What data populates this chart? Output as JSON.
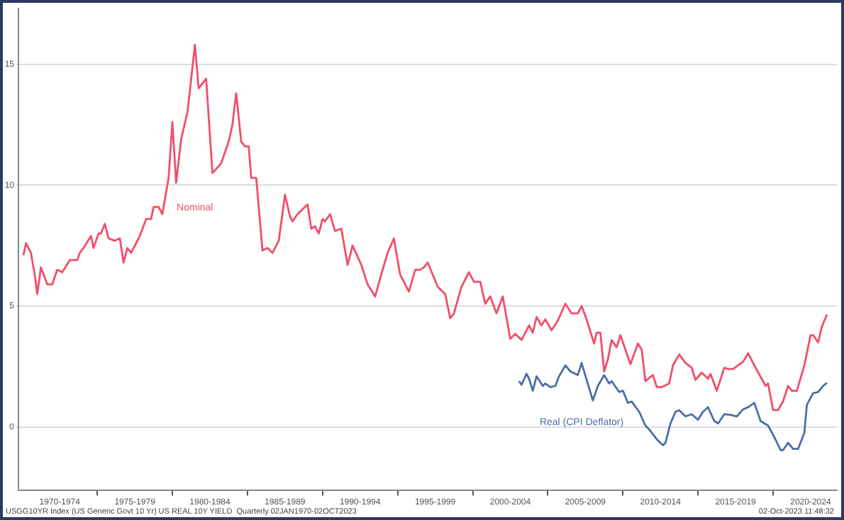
{
  "chart_data": {
    "type": "line",
    "xlim": [
      "1969-10",
      "2024-04"
    ],
    "ylim": [
      -2.6,
      17.3
    ],
    "yticks": [
      0,
      5,
      10,
      15
    ],
    "xticks": [
      {
        "value": "1972-07",
        "label": "1970-1974"
      },
      {
        "value": "1975-01",
        "label": null
      },
      {
        "value": "1977-07",
        "label": "1975-1979"
      },
      {
        "value": "1980-01",
        "label": null
      },
      {
        "value": "1982-07",
        "label": "1980-1984"
      },
      {
        "value": "1985-01",
        "label": null
      },
      {
        "value": "1987-07",
        "label": "1985-1989"
      },
      {
        "value": "1990-01",
        "label": null
      },
      {
        "value": "1992-07",
        "label": "1990-1994"
      },
      {
        "value": "1995-01",
        "label": null
      },
      {
        "value": "1997-07",
        "label": "1995-1999"
      },
      {
        "value": "2000-01",
        "label": null
      },
      {
        "value": "2002-07",
        "label": "2000-2004"
      },
      {
        "value": "2005-01",
        "label": null
      },
      {
        "value": "2007-07",
        "label": "2005-2009"
      },
      {
        "value": "2010-01",
        "label": null
      },
      {
        "value": "2012-07",
        "label": "2010-2014"
      },
      {
        "value": "2015-01",
        "label": null
      },
      {
        "value": "2017-07",
        "label": "2015-2019"
      },
      {
        "value": "2020-01",
        "label": null
      },
      {
        "value": "2022-07",
        "label": "2020-2024"
      }
    ],
    "grid": "y",
    "legend": false,
    "marker": "none",
    "line_style": "solid",
    "annotations": [
      "USGG10YR Index (US Generic Govt 10 Yr) US REAL 10Y YIELD  Quarterly 02JAN1970-02OCT2023",
      "02-Oct-2023 11:48:32"
    ],
    "series": [
      {
        "name": "Nominal",
        "color": "#ef4f6a",
        "x": [
          "1970-02",
          "1970-04",
          "1970-08",
          "1970-11",
          "1971-01",
          "1971-04",
          "1971-09",
          "1972-01",
          "1972-05",
          "1972-09",
          "1973-03",
          "1973-09",
          "1973-11",
          "1974-02",
          "1974-08",
          "1974-10",
          "1975-02",
          "1975-04",
          "1975-07",
          "1975-10",
          "1976-03",
          "1976-07",
          "1976-10",
          "1977-01",
          "1977-04",
          "1977-11",
          "1978-04",
          "1978-08",
          "1978-10",
          "1979-02",
          "1979-05",
          "1979-10",
          "1980-01",
          "1980-04",
          "1980-08",
          "1981-01",
          "1981-03",
          "1981-07",
          "1981-10",
          "1982-04",
          "1982-09",
          "1983-04",
          "1983-10",
          "1984-01",
          "1984-04",
          "1984-08",
          "1984-11",
          "1985-02",
          "1985-04",
          "1985-08",
          "1986-01",
          "1986-05",
          "1986-09",
          "1987-02",
          "1987-07",
          "1987-11",
          "1988-01",
          "1988-05",
          "1989-01",
          "1989-04",
          "1989-07",
          "1989-10",
          "1990-01",
          "1990-03",
          "1990-07",
          "1990-11",
          "1991-04",
          "1991-09",
          "1992-01",
          "1992-08",
          "1993-01",
          "1993-07",
          "1994-01",
          "1994-05",
          "1994-10",
          "1995-03",
          "1995-10",
          "1996-03",
          "1996-07",
          "1996-10",
          "1997-01",
          "1997-09",
          "1998-03",
          "1998-07",
          "1998-10",
          "1999-04",
          "1999-10",
          "2000-02",
          "2000-07",
          "2000-11",
          "2001-03",
          "2001-08",
          "2002-01",
          "2002-07",
          "2002-11",
          "2003-04",
          "2003-10",
          "2004-01",
          "2004-04",
          "2004-08",
          "2004-11",
          "2005-04",
          "2005-09",
          "2006-03",
          "2006-08",
          "2007-01",
          "2007-04",
          "2007-08",
          "2008-02",
          "2008-04",
          "2008-07",
          "2008-10",
          "2009-01",
          "2009-04",
          "2009-08",
          "2009-11",
          "2010-07",
          "2011-01",
          "2011-04",
          "2011-07",
          "2012-01",
          "2012-04",
          "2012-08",
          "2013-02",
          "2013-05",
          "2013-10",
          "2014-03",
          "2014-08",
          "2014-11",
          "2015-04",
          "2015-09",
          "2015-11",
          "2016-04",
          "2016-10",
          "2017-01",
          "2017-05",
          "2018-01",
          "2018-05",
          "2018-10",
          "2019-07",
          "2019-09",
          "2020-01",
          "2020-05",
          "2020-09",
          "2021-01",
          "2021-04",
          "2021-08",
          "2022-02",
          "2022-07",
          "2022-09",
          "2023-01",
          "2023-04",
          "2023-08"
        ],
        "values": [
          7.1,
          7.6,
          7.2,
          6.3,
          5.5,
          6.6,
          5.9,
          5.9,
          6.5,
          6.4,
          6.9,
          6.9,
          7.2,
          7.4,
          7.9,
          7.4,
          8.0,
          8.0,
          8.4,
          7.8,
          7.7,
          7.8,
          6.8,
          7.4,
          7.2,
          7.9,
          8.6,
          8.6,
          9.1,
          9.1,
          8.8,
          10.3,
          12.6,
          10.1,
          11.9,
          13.0,
          13.9,
          15.8,
          14.0,
          14.4,
          10.5,
          10.9,
          11.8,
          12.5,
          13.8,
          11.8,
          11.6,
          11.6,
          10.3,
          10.3,
          7.3,
          7.4,
          7.2,
          7.7,
          9.6,
          8.7,
          8.5,
          8.8,
          9.2,
          8.2,
          8.3,
          8.0,
          8.6,
          8.5,
          8.8,
          8.1,
          8.2,
          6.7,
          7.5,
          6.7,
          5.9,
          5.4,
          6.5,
          7.2,
          7.8,
          6.3,
          5.6,
          6.5,
          6.5,
          6.6,
          6.8,
          5.8,
          5.5,
          4.5,
          4.7,
          5.8,
          6.4,
          6.0,
          6.0,
          5.1,
          5.4,
          4.7,
          5.4,
          3.65,
          3.85,
          3.6,
          4.2,
          3.9,
          4.55,
          4.2,
          4.45,
          4.0,
          4.4,
          5.1,
          4.7,
          4.7,
          5.0,
          4.45,
          3.45,
          3.9,
          3.9,
          2.3,
          2.8,
          3.6,
          3.3,
          3.8,
          2.6,
          3.45,
          3.2,
          1.9,
          2.15,
          1.65,
          1.65,
          1.8,
          2.55,
          3.0,
          2.65,
          2.45,
          1.95,
          2.25,
          2.0,
          2.2,
          1.5,
          2.45,
          2.4,
          2.4,
          2.7,
          3.05,
          2.55,
          1.7,
          1.8,
          0.7,
          0.7,
          1.07,
          1.7,
          1.5,
          1.5,
          2.55,
          3.8,
          3.8,
          3.5,
          4.15,
          4.65
        ]
      },
      {
        "name": "Real (CPI Deflator)",
        "color": "#4a6fa5",
        "x": [
          "2003-02",
          "2003-04",
          "2003-08",
          "2003-10",
          "2004-01",
          "2004-04",
          "2004-09",
          "2004-11",
          "2005-03",
          "2005-07",
          "2005-10",
          "2006-03",
          "2006-07",
          "2007-01",
          "2007-04",
          "2007-08",
          "2008-01",
          "2008-05",
          "2008-10",
          "2009-02",
          "2009-04",
          "2009-10",
          "2010-01",
          "2010-05",
          "2010-08",
          "2011-02",
          "2011-07",
          "2011-10",
          "2012-04",
          "2012-09",
          "2012-11",
          "2013-03",
          "2013-07",
          "2013-10",
          "2014-03",
          "2014-08",
          "2015-01",
          "2015-05",
          "2015-09",
          "2016-02",
          "2016-05",
          "2016-10",
          "2017-03",
          "2017-08",
          "2018-01",
          "2018-05",
          "2018-10",
          "2019-03",
          "2019-09",
          "2020-02",
          "2020-07",
          "2020-09",
          "2021-01",
          "2021-05",
          "2021-09",
          "2022-02",
          "2022-04",
          "2022-09",
          "2023-01",
          "2023-05",
          "2023-08"
        ],
        "values": [
          1.9,
          1.75,
          2.2,
          2.0,
          1.5,
          2.1,
          1.7,
          1.8,
          1.65,
          1.7,
          2.1,
          2.55,
          2.3,
          2.15,
          2.65,
          1.95,
          1.1,
          1.7,
          2.15,
          1.8,
          1.9,
          1.45,
          1.5,
          1.0,
          1.05,
          0.63,
          0.06,
          -0.1,
          -0.5,
          -0.75,
          -0.65,
          0.15,
          0.63,
          0.7,
          0.44,
          0.53,
          0.3,
          0.63,
          0.82,
          0.25,
          0.15,
          0.53,
          0.5,
          0.44,
          0.73,
          0.82,
          1.0,
          0.25,
          0.06,
          -0.42,
          -0.95,
          -0.95,
          -0.65,
          -0.9,
          -0.9,
          -0.23,
          0.92,
          1.4,
          1.45,
          1.7,
          1.83
        ]
      }
    ]
  }
}
